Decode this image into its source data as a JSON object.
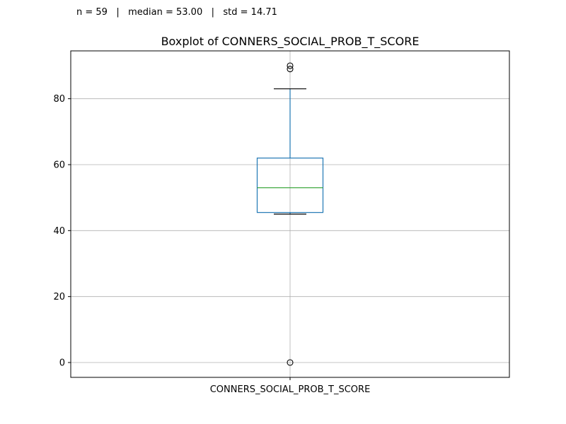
{
  "stats_line": "n = 59   |   median = 53.00   |   std = 14.71",
  "chart_data": {
    "type": "box",
    "title": "Boxplot of CONNERS_SOCIAL_PROB_T_SCORE",
    "xlabel": "",
    "ylabel": "",
    "categories": [
      "CONNERS_SOCIAL_PROB_T_SCORE"
    ],
    "ylim": [
      -4.5,
      94.5
    ],
    "yticks": [
      0,
      20,
      40,
      60,
      80
    ],
    "grid": true,
    "box": {
      "whisker_low": 45,
      "q1": 45.5,
      "median": 53,
      "q3": 62,
      "whisker_high": 83,
      "outliers": [
        0,
        89,
        90
      ]
    },
    "colors": {
      "box": "#1f77b4",
      "median": "#2ca02c",
      "whisker": "#1f77b4",
      "cap": "#000000",
      "grid": "#b0b0b0"
    }
  }
}
